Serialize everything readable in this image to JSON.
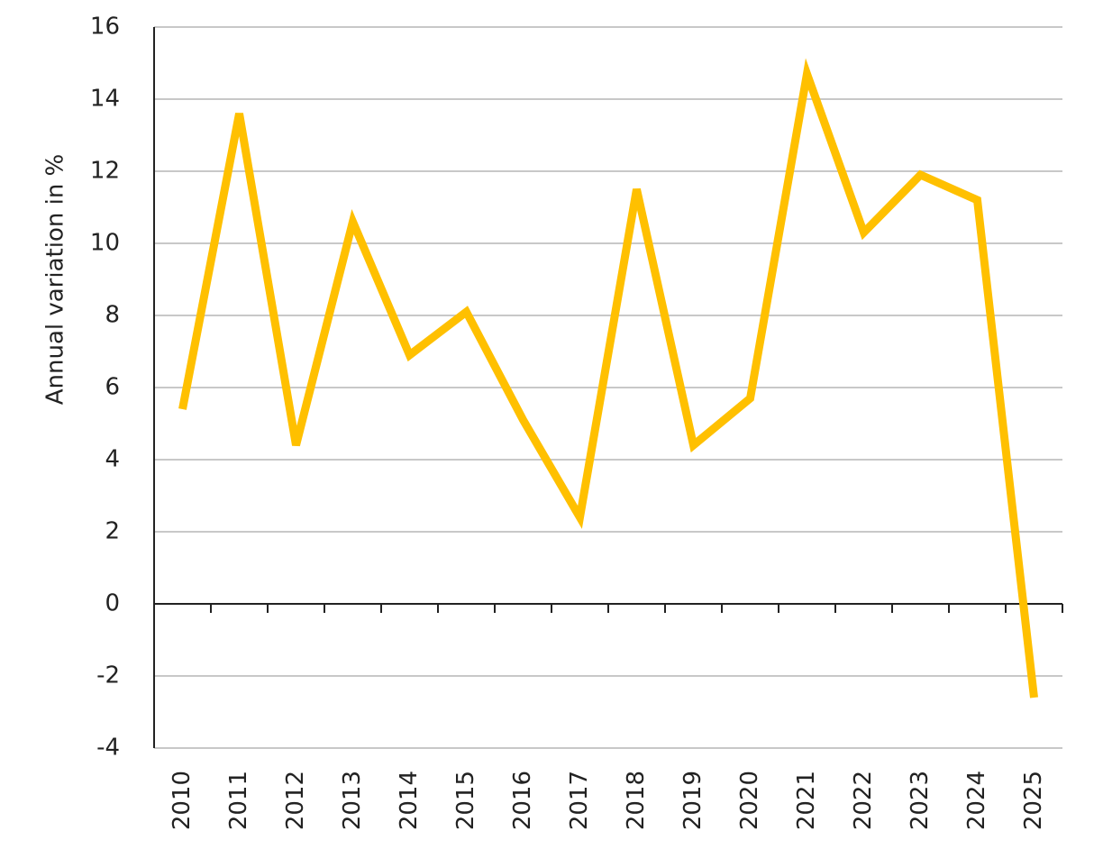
{
  "chart_data": {
    "type": "line",
    "y_label": "Annual variation in %",
    "categories": [
      "2010",
      "2011",
      "2012",
      "2013",
      "2014",
      "2015",
      "2016",
      "2017",
      "2018",
      "2019",
      "2020",
      "2021",
      "2022",
      "2023",
      "2024",
      "2025"
    ],
    "values": [
      5.4,
      13.6,
      4.4,
      10.6,
      6.9,
      8.1,
      5.1,
      2.4,
      11.5,
      4.4,
      5.7,
      14.7,
      10.3,
      11.9,
      11.2,
      -2.6
    ],
    "color": "#ffc000",
    "ylim": [
      -4,
      16
    ],
    "yticks": [
      -4,
      -2,
      0,
      2,
      4,
      6,
      8,
      10,
      12,
      14,
      16
    ],
    "grid": true
  }
}
